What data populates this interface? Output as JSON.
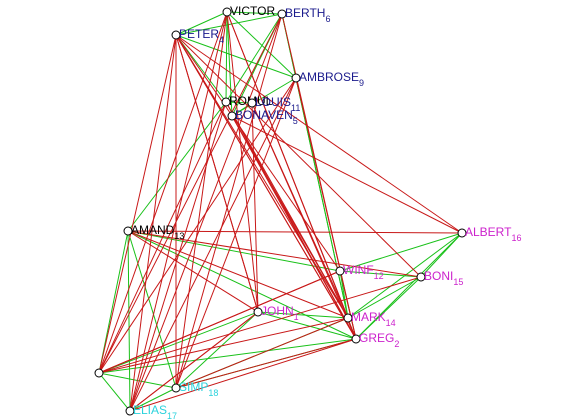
{
  "colors": {
    "background": "#ffffff",
    "edge_green": "#19c119",
    "edge_red": "#c81818",
    "node_fill": "#ffffff",
    "node_stroke": "#000000",
    "label_black": "#000000",
    "label_navy": "#1a1a8c",
    "label_magenta": "#cc22cc",
    "label_cyan": "#2ad2dc"
  },
  "nodes": [
    {
      "id": "victor",
      "label": "VICTOR",
      "sub": "",
      "color": "#000000"
    },
    {
      "id": "berth",
      "label": "BERTH",
      "sub": "6",
      "color": "#1a1a8c"
    },
    {
      "id": "peter",
      "label": "PETER",
      "sub": "4",
      "color": "#1a1a8c"
    },
    {
      "id": "ambrose",
      "label": "AMBROSE",
      "sub": "9",
      "color": "#1a1a8c"
    },
    {
      "id": "romul",
      "label": "ROMUL",
      "sub": "",
      "color": "#000000"
    },
    {
      "id": "louis",
      "label": "LOUIS",
      "sub": "11",
      "color": "#1a1a8c"
    },
    {
      "id": "bonaven",
      "label": "BONAVEN",
      "sub": "5",
      "color": "#1a1a8c"
    },
    {
      "id": "amand",
      "label": "AMAND",
      "sub": "13",
      "color": "#000000"
    },
    {
      "id": "albert",
      "label": "ALBERT",
      "sub": "16",
      "color": "#cc22cc"
    },
    {
      "id": "winf",
      "label": "WINF",
      "sub": "12",
      "color": "#cc22cc"
    },
    {
      "id": "boni",
      "label": "BONI",
      "sub": "15",
      "color": "#cc22cc"
    },
    {
      "id": "john",
      "label": "JOHN",
      "sub": "1",
      "color": "#cc22cc"
    },
    {
      "id": "mark",
      "label": "MARK",
      "sub": "14",
      "color": "#cc22cc"
    },
    {
      "id": "greg",
      "label": "GREG",
      "sub": "2",
      "color": "#cc22cc"
    },
    {
      "id": "basil",
      "label": "",
      "sub": "",
      "color": "#2ad2dc"
    },
    {
      "id": "simp",
      "label": "SIMP",
      "sub": "18",
      "color": "#2ad2dc"
    },
    {
      "id": "elias",
      "label": "ELIAS",
      "sub": "17",
      "color": "#2ad2dc"
    }
  ],
  "edges": {
    "green": [
      [
        "victor",
        "berth"
      ],
      [
        "victor",
        "peter"
      ],
      [
        "victor",
        "ambrose"
      ],
      [
        "berth",
        "ambrose"
      ],
      [
        "peter",
        "berth"
      ],
      [
        "peter",
        "ambrose"
      ],
      [
        "peter",
        "romul"
      ],
      [
        "victor",
        "romul"
      ],
      [
        "berth",
        "romul"
      ],
      [
        "romul",
        "louis"
      ],
      [
        "louis",
        "bonaven"
      ],
      [
        "ambrose",
        "bonaven"
      ],
      [
        "victor",
        "bonaven"
      ],
      [
        "berth",
        "bonaven"
      ],
      [
        "berth",
        "mark"
      ],
      [
        "ambrose",
        "mark"
      ],
      [
        "romul",
        "amand"
      ],
      [
        "amand",
        "winf"
      ],
      [
        "amand",
        "greg"
      ],
      [
        "amand",
        "basil"
      ],
      [
        "amand",
        "simp"
      ],
      [
        "amand",
        "elias"
      ],
      [
        "winf",
        "boni"
      ],
      [
        "winf",
        "albert"
      ],
      [
        "boni",
        "albert"
      ],
      [
        "albert",
        "mark"
      ],
      [
        "albert",
        "greg"
      ],
      [
        "boni",
        "greg"
      ],
      [
        "boni",
        "mark"
      ],
      [
        "john",
        "mark"
      ],
      [
        "john",
        "greg"
      ],
      [
        "john",
        "basil"
      ],
      [
        "greg",
        "basil"
      ],
      [
        "greg",
        "simp"
      ],
      [
        "winf",
        "greg"
      ],
      [
        "simp",
        "elias"
      ],
      [
        "basil",
        "elias"
      ],
      [
        "basil",
        "simp"
      ],
      [
        "mark",
        "simp"
      ],
      [
        "john",
        "simp"
      ],
      [
        "winf",
        "mark"
      ]
    ],
    "red": [
      [
        "peter",
        "mark"
      ],
      [
        "peter",
        "greg"
      ],
      [
        "peter",
        "john"
      ],
      [
        "peter",
        "winf"
      ],
      [
        "peter",
        "basil"
      ],
      [
        "peter",
        "simp"
      ],
      [
        "peter",
        "elias"
      ],
      [
        "peter",
        "albert"
      ],
      [
        "peter",
        "boni"
      ],
      [
        "victor",
        "basil"
      ],
      [
        "victor",
        "simp"
      ],
      [
        "victor",
        "elias"
      ],
      [
        "victor",
        "john"
      ],
      [
        "victor",
        "greg"
      ],
      [
        "victor",
        "mark"
      ],
      [
        "berth",
        "elias"
      ],
      [
        "berth",
        "simp"
      ],
      [
        "berth",
        "basil"
      ],
      [
        "berth",
        "greg"
      ],
      [
        "ambrose",
        "greg"
      ],
      [
        "ambrose",
        "basil"
      ],
      [
        "ambrose",
        "elias"
      ],
      [
        "ambrose",
        "simp"
      ],
      [
        "romul",
        "mark"
      ],
      [
        "romul",
        "greg"
      ],
      [
        "romul",
        "elias"
      ],
      [
        "romul",
        "basil"
      ],
      [
        "louis",
        "greg"
      ],
      [
        "louis",
        "mark"
      ],
      [
        "louis",
        "john"
      ],
      [
        "bonaven",
        "greg"
      ],
      [
        "bonaven",
        "mark"
      ],
      [
        "bonaven",
        "albert"
      ],
      [
        "amand",
        "boni"
      ],
      [
        "amand",
        "mark"
      ],
      [
        "amand",
        "john"
      ],
      [
        "amand",
        "albert"
      ],
      [
        "basil",
        "boni"
      ],
      [
        "basil",
        "mark"
      ],
      [
        "basil",
        "winf"
      ],
      [
        "simp",
        "mark"
      ],
      [
        "simp",
        "greg"
      ],
      [
        "elias",
        "greg"
      ],
      [
        "elias",
        "john"
      ],
      [
        "greg",
        "peter"
      ],
      [
        "winf",
        "basil"
      ],
      [
        "john",
        "elias"
      ],
      [
        "john",
        "peter"
      ]
    ]
  }
}
